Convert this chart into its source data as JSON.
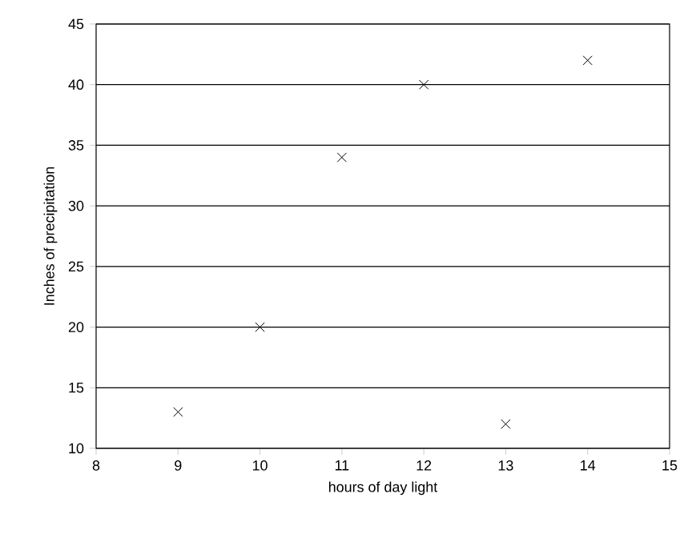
{
  "chart_data": {
    "type": "scatter",
    "xlabel": "hours of day light",
    "ylabel": "Inches of precipitation",
    "x": [
      9,
      10,
      11,
      12,
      13,
      14
    ],
    "values": [
      13,
      20,
      34,
      40,
      12,
      42
    ],
    "color": "#000000",
    "marker": "cross",
    "xlim": [
      8,
      15
    ],
    "xticks": [
      8,
      9,
      10,
      11,
      12,
      13,
      14,
      15
    ],
    "ylim": [
      10,
      45
    ],
    "yticks": [
      10,
      15,
      20,
      25,
      30,
      35,
      40,
      45
    ],
    "grid": "y"
  }
}
